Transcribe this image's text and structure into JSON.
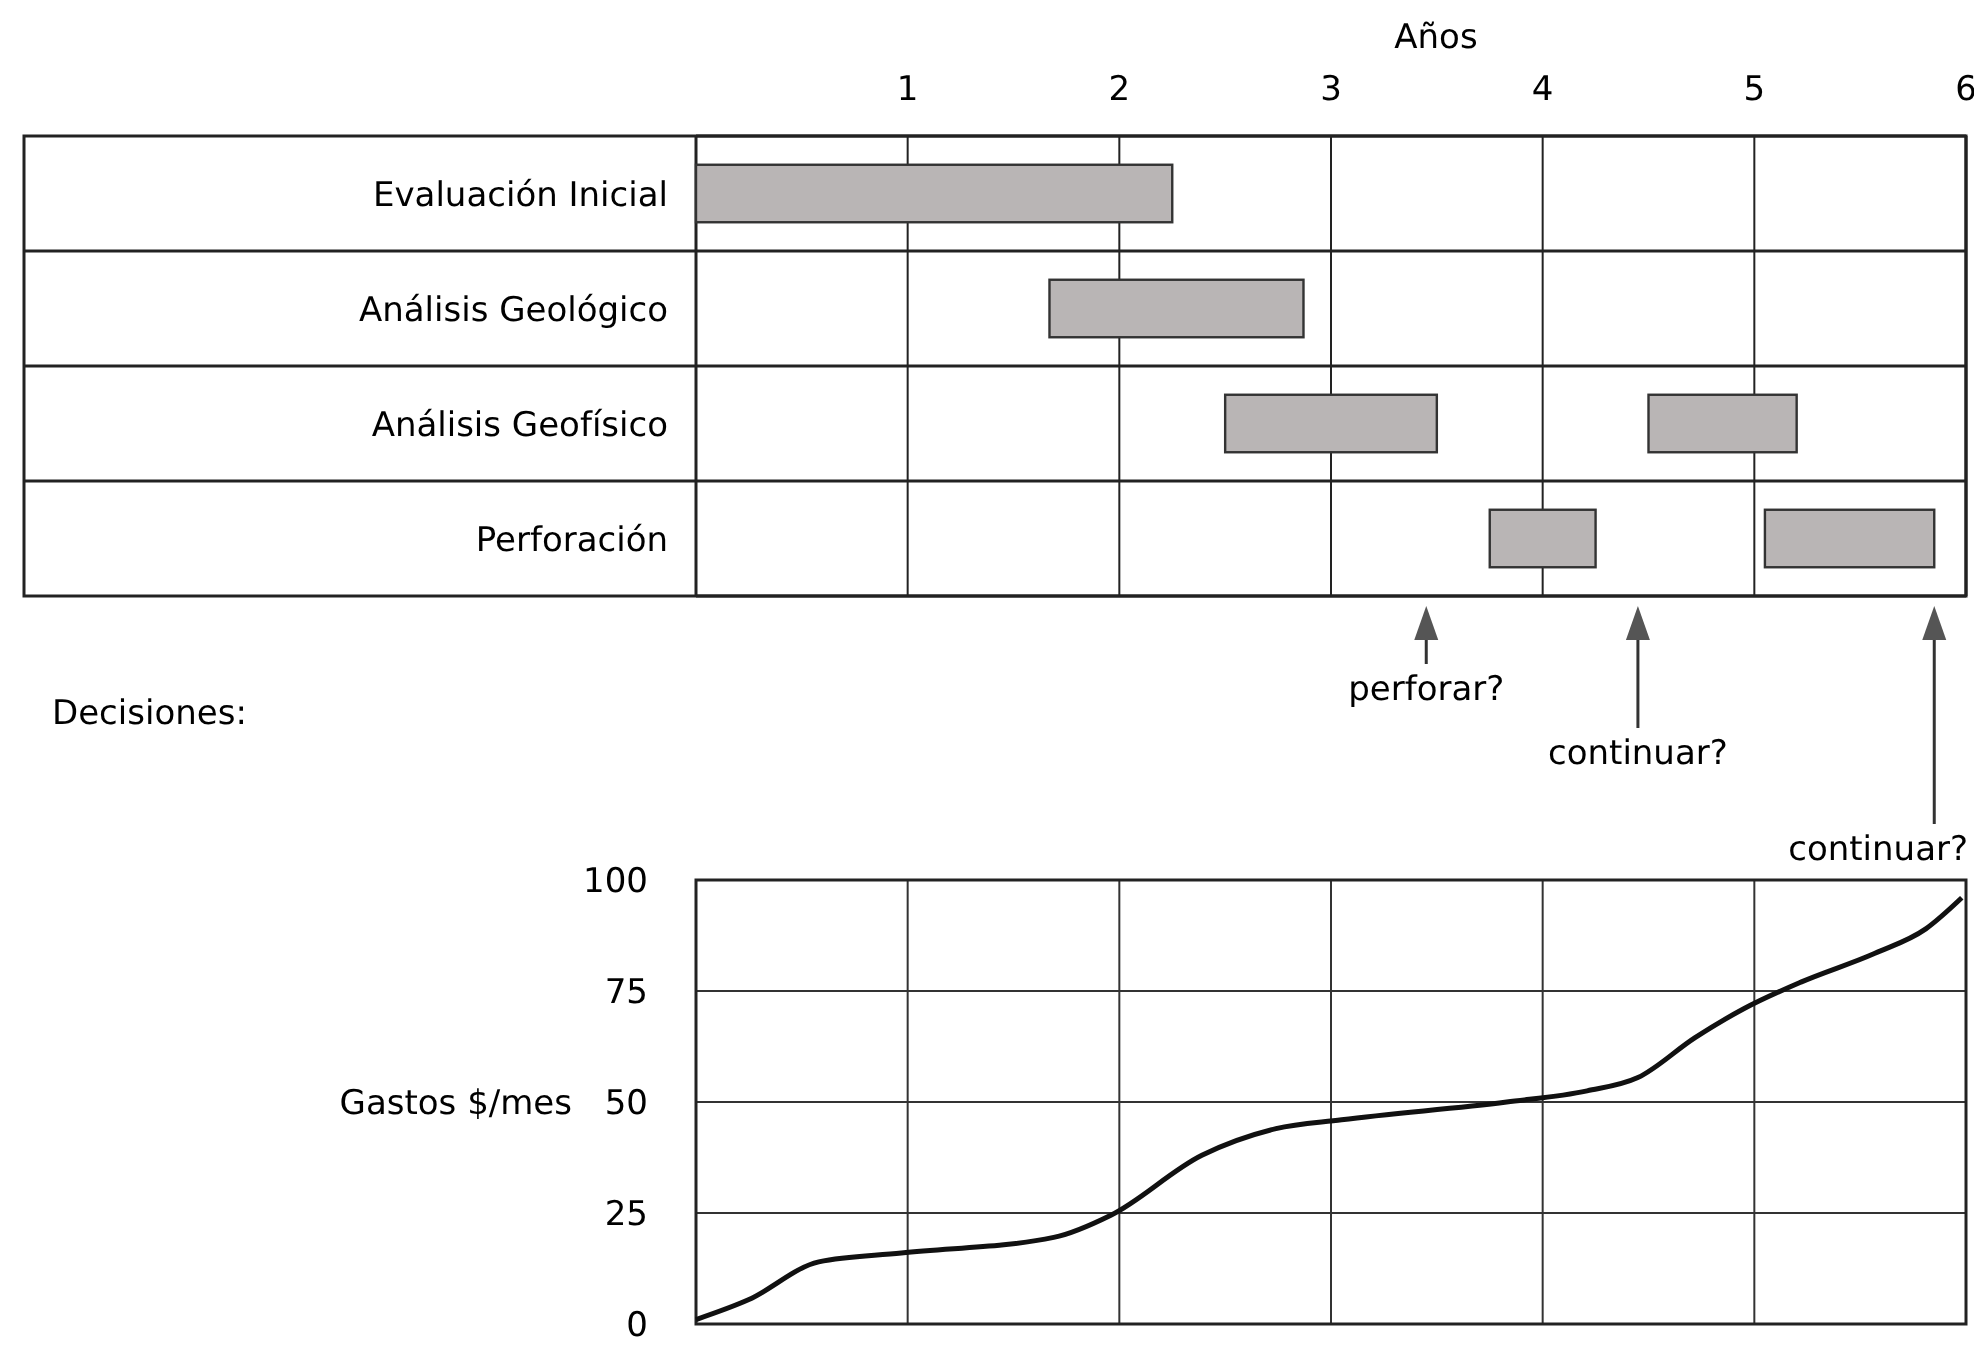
{
  "chart_data": [
    {
      "type": "bar",
      "orientation": "horizontal",
      "xlabel": "Años",
      "categories": [
        "Evaluación Inicial",
        "Análisis Geológico",
        "Análisis Geofísico",
        "Perforación"
      ],
      "series": [
        {
          "color": "#b9b5b5",
          "values": [
            2.25,
            1.2,
            1.0,
            0.5
          ],
          "base": [
            0,
            1.67,
            2.5,
            3.75
          ]
        },
        {
          "color": "#b9b5b5",
          "values": [
            null,
            null,
            0.7,
            0.8
          ],
          "base": [
            null,
            null,
            4.5,
            5.05
          ]
        }
      ],
      "xlim": [
        0,
        6
      ],
      "xticks": [
        1,
        2,
        3,
        4,
        5,
        6
      ],
      "grid": "x",
      "annotations": [
        "Decisiones:"
      ],
      "ref_lines": [
        {
          "axis": "x",
          "value": 3.45,
          "label": "perforar?"
        },
        {
          "axis": "x",
          "value": 4.45,
          "label": "continuar?"
        },
        {
          "axis": "x",
          "value": 5.85,
          "label": "continuar?"
        }
      ]
    },
    {
      "type": "line",
      "ylabel": "Gastos $/mes",
      "series": [
        {
          "color": "#111111",
          "x": [
            0,
            0.25,
            0.58,
            0.97,
            1.69,
            1.96,
            2.39,
            2.74,
            3.05,
            3.83,
            4.21,
            4.45,
            4.72,
            4.95,
            5.22,
            5.57,
            5.81,
            5.98
          ],
          "values": [
            1,
            5.5,
            14,
            16,
            19.5,
            24.5,
            38,
            44,
            46,
            50,
            52.5,
            55.5,
            64.5,
            71,
            77,
            83.5,
            89,
            96
          ]
        }
      ],
      "xlim": [
        0,
        6
      ],
      "xticks": [
        {
          "value": 1,
          "label": null
        },
        {
          "value": 2,
          "label": null
        },
        {
          "value": 3,
          "label": null
        },
        {
          "value": 4,
          "label": null
        },
        {
          "value": 5,
          "label": null
        }
      ],
      "ylim": [
        0,
        100
      ],
      "yticks": [
        0,
        25,
        50,
        75,
        100
      ],
      "grid": true,
      "tick_labels": "y"
    }
  ]
}
